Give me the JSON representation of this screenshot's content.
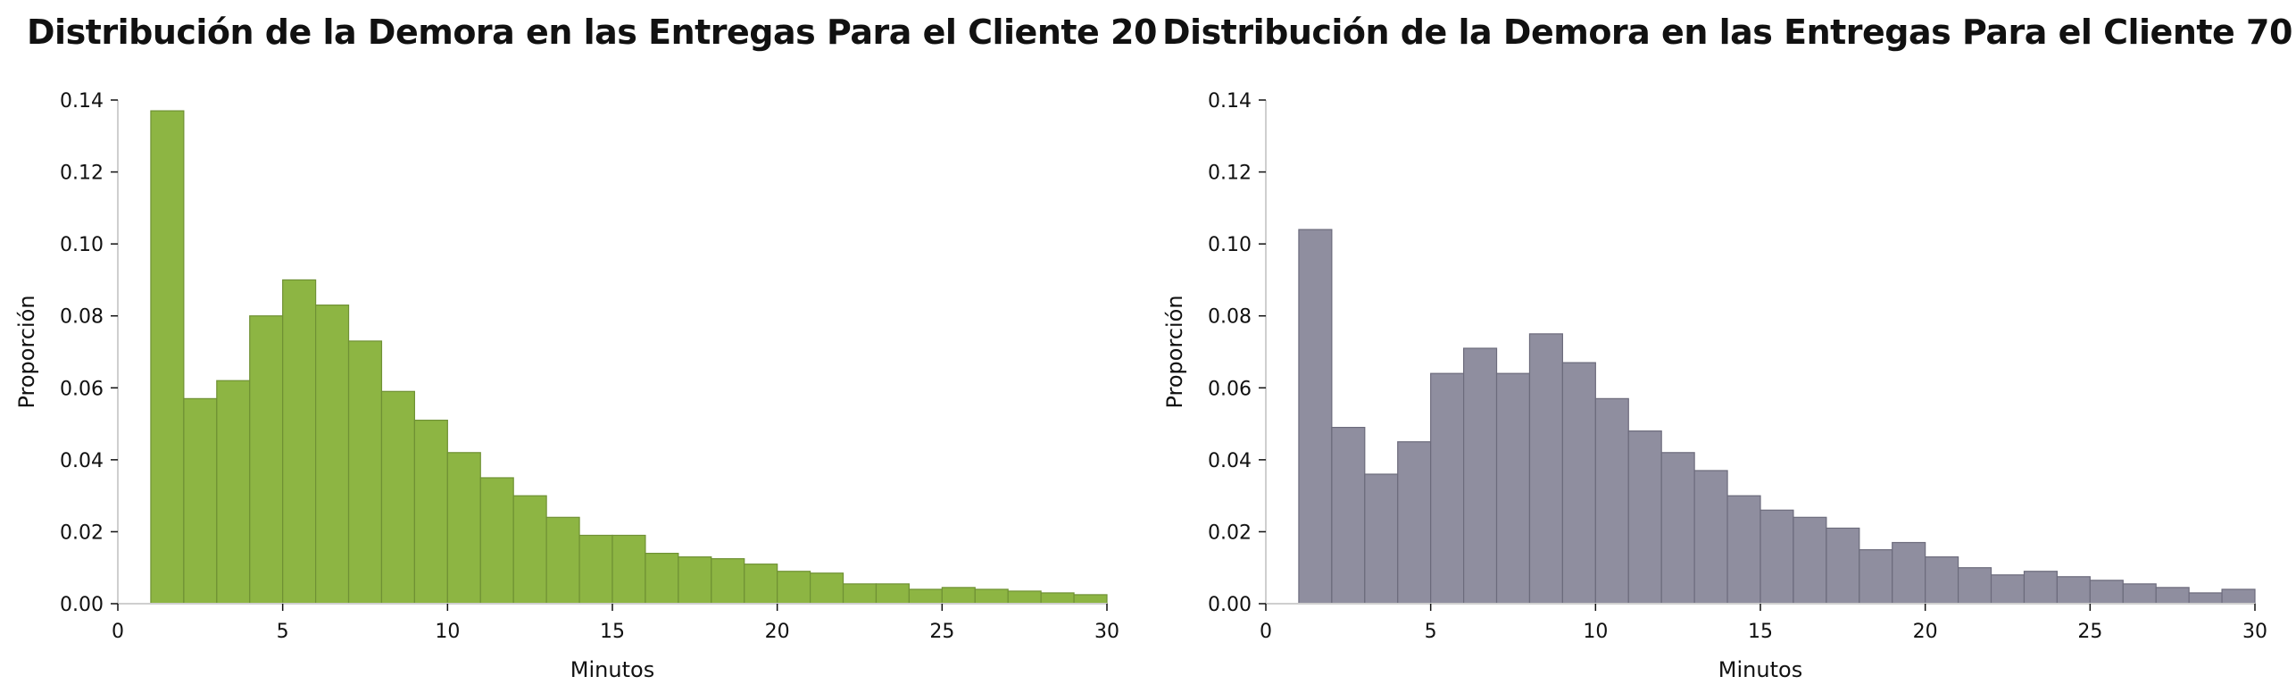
{
  "chart_data": [
    {
      "type": "bar",
      "title": "Distribución de la Demora en las Entregas Para el Cliente 20",
      "xlabel": "Minutos",
      "ylabel": "Proporción",
      "xlim": [
        0,
        30
      ],
      "ylim": [
        0,
        0.14
      ],
      "xticks": [
        "0",
        "5",
        "10",
        "15",
        "20",
        "25",
        "30"
      ],
      "yticks": [
        "0.00",
        "0.02",
        "0.04",
        "0.06",
        "0.08",
        "0.10",
        "0.12",
        "0.14"
      ],
      "grid": false,
      "color": "#8db543",
      "edge_color": "#6f9134",
      "bin_start": 1,
      "bin_width": 1,
      "values": [
        0.137,
        0.057,
        0.062,
        0.08,
        0.09,
        0.083,
        0.073,
        0.059,
        0.051,
        0.042,
        0.035,
        0.03,
        0.024,
        0.019,
        0.019,
        0.014,
        0.013,
        0.0125,
        0.011,
        0.009,
        0.0085,
        0.0055,
        0.0055,
        0.004,
        0.0045,
        0.004,
        0.0035,
        0.003,
        0.0025
      ]
    },
    {
      "type": "bar",
      "title": "Distribución de la Demora en las Entregas Para el Cliente 70",
      "xlabel": "Minutos",
      "ylabel": "Proporción",
      "xlim": [
        0,
        30
      ],
      "ylim": [
        0,
        0.14
      ],
      "xticks": [
        "0",
        "5",
        "10",
        "15",
        "20",
        "25",
        "30"
      ],
      "yticks": [
        "0.00",
        "0.02",
        "0.04",
        "0.06",
        "0.08",
        "0.10",
        "0.12",
        "0.14"
      ],
      "grid": false,
      "color": "#8f8e9f",
      "edge_color": "#6c6b7c",
      "bin_start": 1,
      "bin_width": 1,
      "values": [
        0.104,
        0.049,
        0.036,
        0.045,
        0.064,
        0.071,
        0.064,
        0.075,
        0.067,
        0.057,
        0.048,
        0.042,
        0.037,
        0.03,
        0.026,
        0.024,
        0.021,
        0.015,
        0.017,
        0.013,
        0.01,
        0.008,
        0.009,
        0.0075,
        0.0065,
        0.0055,
        0.0045,
        0.003,
        0.004
      ]
    }
  ]
}
